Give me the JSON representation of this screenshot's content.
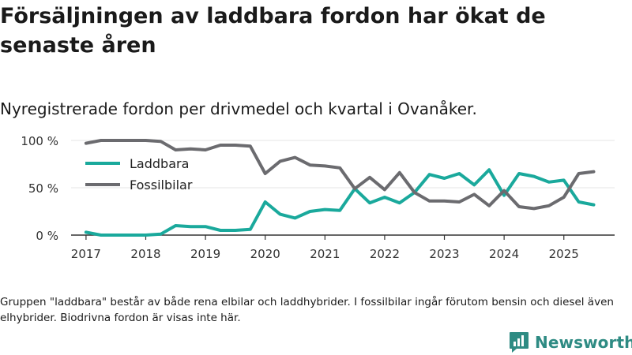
{
  "title": "Försäljningen av laddbara fordon har ökat de senaste åren",
  "subtitle": "Nyregistrerade fordon per drivmedel och kvartal i Ovanåker.",
  "footnote": "Gruppen \"laddbara\" består av både rena elbilar och laddhybrider. I fossilbilar ingår förutom bensin och diesel även elhybrider. Biodrivna fordon är visas inte här.",
  "brand": {
    "name": "Newsworthy"
  },
  "chart_data": {
    "type": "line",
    "title": "Försäljningen av laddbara fordon har ökat de senaste åren",
    "subtitle": "Nyregistrerade fordon per drivmedel och kvartal i Ovanåker.",
    "xlabel": "",
    "ylabel": "",
    "x_ticks": [
      "2017",
      "2018",
      "2019",
      "2020",
      "2021",
      "2022",
      "2023",
      "2024",
      "2025"
    ],
    "x_tick_values": [
      2017,
      2018,
      2019,
      2020,
      2021,
      2022,
      2023,
      2024,
      2025
    ],
    "y_ticks": [
      "0 %",
      "50 %",
      "100 %"
    ],
    "y_tick_values": [
      0,
      50,
      100
    ],
    "ylim": [
      0,
      100
    ],
    "xlim": [
      2016.75,
      2025.85
    ],
    "x": [
      2017.0,
      2017.25,
      2017.5,
      2017.75,
      2018.0,
      2018.25,
      2018.5,
      2018.75,
      2019.0,
      2019.25,
      2019.5,
      2019.75,
      2020.0,
      2020.25,
      2020.5,
      2020.75,
      2021.0,
      2021.25,
      2021.5,
      2021.75,
      2022.0,
      2022.25,
      2022.5,
      2022.75,
      2023.0,
      2023.25,
      2023.5,
      2023.75,
      2024.0,
      2024.25,
      2024.5,
      2024.75,
      2025.0,
      2025.25,
      2025.5
    ],
    "series": [
      {
        "name": "Laddbara",
        "color": "#1aa99c",
        "values": [
          3,
          0,
          0,
          0,
          0,
          1,
          10,
          9,
          9,
          5,
          5,
          6,
          35,
          22,
          18,
          25,
          27,
          26,
          49,
          34,
          40,
          34,
          45,
          64,
          60,
          65,
          53,
          69,
          42,
          65,
          62,
          56,
          58,
          35,
          32
        ]
      },
      {
        "name": "Fossilbilar",
        "color": "#6b6b6f",
        "values": [
          97,
          100,
          100,
          100,
          100,
          99,
          90,
          91,
          90,
          95,
          95,
          94,
          65,
          78,
          82,
          74,
          73,
          71,
          49,
          61,
          48,
          66,
          45,
          36,
          36,
          35,
          43,
          31,
          47,
          30,
          28,
          31,
          40,
          65,
          67
        ]
      }
    ],
    "legend_position": "top-left",
    "grid": true
  }
}
